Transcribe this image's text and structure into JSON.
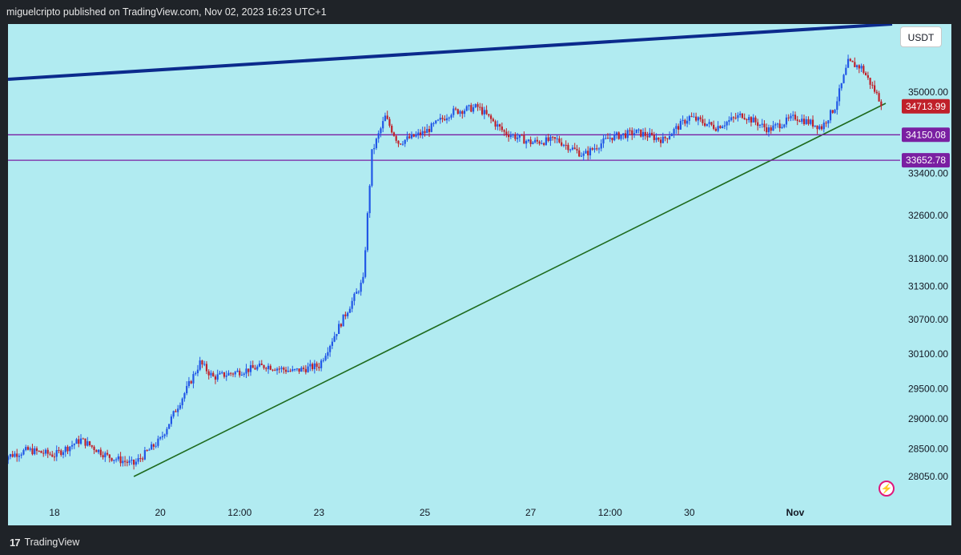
{
  "header": {
    "publish_line": "miguelcripto published on TradingView.com, Nov 02, 2023 16:23 UTC+1"
  },
  "footer": {
    "logo_glyph": "17",
    "brand": "TradingView"
  },
  "currency_label": "USDT",
  "colors": {
    "background": "#b1ebf1",
    "bull": "#2157e6",
    "bear": "#c0202a",
    "upper_channel": "#0b2a8c",
    "trendline": "#1e6b1e",
    "levels": "#7a1fa2",
    "last_price_tag": "#c0202a",
    "level_tag": "#7a1fa2"
  },
  "chart_data": {
    "type": "candlestick",
    "symbol_quote": "USDT",
    "y_axis": {
      "ticks": [
        "35000.00",
        "33400.00",
        "32600.00",
        "31800.00",
        "31300.00",
        "30700.00",
        "30100.00",
        "29500.00",
        "29000.00",
        "28500.00",
        "28050.00"
      ],
      "scale": "log"
    },
    "x_axis": {
      "ticks": [
        "18",
        "20",
        "12:00",
        "23",
        "25",
        "27",
        "12:00",
        "30",
        "Nov"
      ]
    },
    "price_tags": {
      "last": "34713.99",
      "level_high": "34150.08",
      "level_low": "33652.78"
    },
    "horizontal_levels": [
      34150.08,
      33652.78
    ],
    "trendlines": [
      {
        "name": "support",
        "from": [
          "Oct 19 12:00",
          28050
        ],
        "to": [
          "Nov 02 16:00",
          34713.99
        ]
      },
      {
        "name": "upper_channel",
        "from": [
          "Oct 17",
          35500
        ],
        "to": [
          "Nov 02 16:00",
          36500
        ]
      }
    ],
    "close_path": [
      {
        "t": "Oct 17 00:00",
        "p": 28350
      },
      {
        "t": "Oct 17 12:00",
        "p": 28480
      },
      {
        "t": "Oct 18 00:00",
        "p": 28400
      },
      {
        "t": "Oct 18 12:00",
        "p": 28650
      },
      {
        "t": "Oct 19 00:00",
        "p": 28380
      },
      {
        "t": "Oct 19 12:00",
        "p": 28250
      },
      {
        "t": "Oct 20 00:00",
        "p": 28650
      },
      {
        "t": "Oct 20 12:00",
        "p": 29500
      },
      {
        "t": "Oct 20 18:00",
        "p": 29950
      },
      {
        "t": "Oct 21 00:00",
        "p": 29700
      },
      {
        "t": "Oct 21 12:00",
        "p": 29800
      },
      {
        "t": "Oct 22 00:00",
        "p": 29900
      },
      {
        "t": "Oct 22 12:00",
        "p": 29800
      },
      {
        "t": "Oct 23 00:00",
        "p": 29900
      },
      {
        "t": "Oct 23 12:00",
        "p": 30800
      },
      {
        "t": "Oct 23 20:00",
        "p": 31400
      },
      {
        "t": "Oct 24 00:00",
        "p": 33800
      },
      {
        "t": "Oct 24 06:00",
        "p": 34500
      },
      {
        "t": "Oct 24 12:00",
        "p": 34000
      },
      {
        "t": "Oct 25 00:00",
        "p": 34200
      },
      {
        "t": "Oct 25 12:00",
        "p": 34600
      },
      {
        "t": "Oct 26 00:00",
        "p": 34700
      },
      {
        "t": "Oct 26 12:00",
        "p": 34200
      },
      {
        "t": "Oct 27 00:00",
        "p": 34000
      },
      {
        "t": "Oct 27 12:00",
        "p": 34050
      },
      {
        "t": "Oct 28 00:00",
        "p": 33750
      },
      {
        "t": "Oct 28 12:00",
        "p": 34100
      },
      {
        "t": "Oct 29 00:00",
        "p": 34200
      },
      {
        "t": "Oct 29 12:00",
        "p": 34050
      },
      {
        "t": "Oct 30 00:00",
        "p": 34500
      },
      {
        "t": "Oct 30 12:00",
        "p": 34300
      },
      {
        "t": "Oct 31 00:00",
        "p": 34550
      },
      {
        "t": "Oct 31 12:00",
        "p": 34250
      },
      {
        "t": "Nov 01 00:00",
        "p": 34500
      },
      {
        "t": "Nov 01 12:00",
        "p": 34300
      },
      {
        "t": "Nov 01 18:00",
        "p": 34700
      },
      {
        "t": "Nov 02 00:00",
        "p": 35600
      },
      {
        "t": "Nov 02 06:00",
        "p": 35500
      },
      {
        "t": "Nov 02 16:00",
        "p": 34713.99
      }
    ]
  }
}
